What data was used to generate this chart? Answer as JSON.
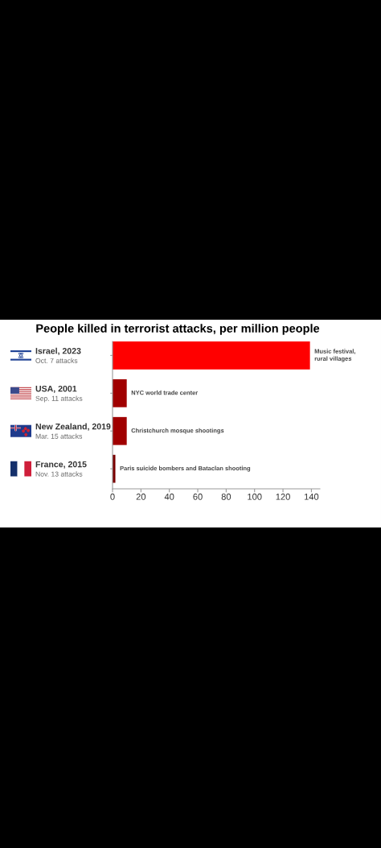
{
  "chart_data": {
    "type": "bar",
    "orientation": "horizontal",
    "title": "People killed in terrorist attacks, per million people",
    "categories": [
      "Israel, 2023\nOct. 7 attacks",
      "USA, 2001\nSep. 11 attacks",
      "New Zealand, 2019\nMar. 15 attacks",
      "France, 2015\nNov. 13 attacks"
    ],
    "values": [
      139,
      10,
      10,
      2
    ],
    "colors": [
      "#ff0000",
      "#a00000",
      "#a00000",
      "#7a0000"
    ],
    "xlim": [
      0,
      146
    ],
    "xticks": [
      0,
      20,
      40,
      60,
      80,
      100,
      120,
      140
    ],
    "annotations": [
      {
        "text": "Music festival,\nrural villages",
        "x": 139,
        "y": "Israel, 2023\nOct. 7 attacks"
      },
      {
        "text": "NYC world trade center",
        "x": 10,
        "y": "USA, 2001\nSep. 11 attacks"
      },
      {
        "text": "Christchurch mosque shootings",
        "x": 10,
        "y": "New Zealand, 2019\nMar. 15 attacks"
      },
      {
        "text": "Paris suicide bombers and Bataclan shooting",
        "x": 2,
        "y": "France, 2015\nNov. 13 attacks"
      }
    ],
    "grid": false
  }
}
